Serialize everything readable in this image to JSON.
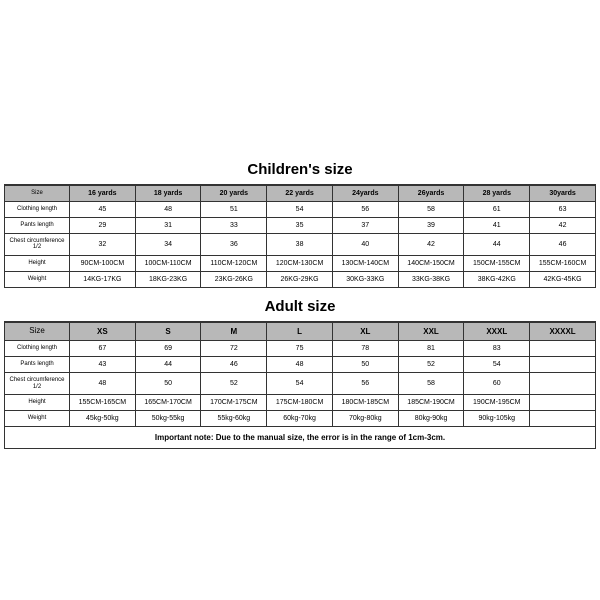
{
  "children": {
    "title": "Children's size",
    "rowLabels": [
      "Size",
      "Clothing length",
      "Pants length",
      "Chest circumference 1/2",
      "Height",
      "Weight"
    ],
    "columns": [
      "16 yards",
      "18 yards",
      "20 yards",
      "22 yards",
      "24yards",
      "26yards",
      "28 yards",
      "30yards"
    ],
    "rows": [
      [
        "45",
        "48",
        "51",
        "54",
        "56",
        "58",
        "61",
        "63"
      ],
      [
        "29",
        "31",
        "33",
        "35",
        "37",
        "39",
        "41",
        "42"
      ],
      [
        "32",
        "34",
        "36",
        "38",
        "40",
        "42",
        "44",
        "46"
      ],
      [
        "90CM-100CM",
        "100CM-110CM",
        "110CM-120CM",
        "120CM-130CM",
        "130CM-140CM",
        "140CM-150CM",
        "150CM-155CM",
        "155CM-160CM"
      ],
      [
        "14KG-17KG",
        "18KG-23KG",
        "23KG-26KG",
        "26KG-29KG",
        "30KG-33KG",
        "33KG-38KG",
        "38KG-42KG",
        "42KG-45KG"
      ]
    ]
  },
  "adult": {
    "title": "Adult size",
    "rowLabels": [
      "Size",
      "Clothing length",
      "Pants length",
      "Chest circumference 1/2",
      "Height",
      "Weight"
    ],
    "columns": [
      "XS",
      "S",
      "M",
      "L",
      "XL",
      "XXL",
      "XXXL",
      "XXXXL"
    ],
    "rows": [
      [
        "67",
        "69",
        "72",
        "75",
        "78",
        "81",
        "83",
        ""
      ],
      [
        "43",
        "44",
        "46",
        "48",
        "50",
        "52",
        "54",
        ""
      ],
      [
        "48",
        "50",
        "52",
        "54",
        "56",
        "58",
        "60",
        ""
      ],
      [
        "155CM-165CM",
        "165CM-170CM",
        "170CM-175CM",
        "175CM-180CM",
        "180CM-185CM",
        "185CM-190CM",
        "190CM-195CM",
        ""
      ],
      [
        "45kg-50kg",
        "50kg-55kg",
        "55kg-60kg",
        "60kg-70kg",
        "70kg-80kg",
        "80kg-90kg",
        "90kg-105kg",
        ""
      ]
    ]
  },
  "note": "Important note: Due to the manual size, the error is in the range of 1cm-3cm.",
  "style": {
    "borderColor": "#333333",
    "headerBg": "#b8b8b8",
    "bg": "#ffffff",
    "titleFontSize": 15,
    "cellFontSize": 7,
    "labelFontSize": 6,
    "noteFontSize": 8
  }
}
